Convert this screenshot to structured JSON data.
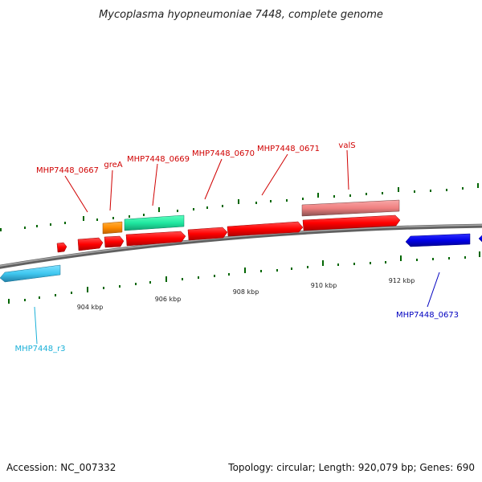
{
  "title": "Mycoplasma hyopneumoniae 7448, complete genome",
  "genes": [
    {
      "label": "MHP7448_0667",
      "color": "#e00000"
    },
    {
      "label": "greA",
      "color": "#e00000"
    },
    {
      "label": "MHP7448_0669",
      "color": "#e00000"
    },
    {
      "label": "MHP7448_0670",
      "color": "#e00000"
    },
    {
      "label": "MHP7448_0671",
      "color": "#e00000"
    },
    {
      "label": "valS",
      "color": "#e00000"
    },
    {
      "label": "MHP7448_0673",
      "color": "#0000c0"
    },
    {
      "label": "MHP7448_r3",
      "color": "#1ab0d8"
    }
  ],
  "scale": {
    "ticks": [
      "904 kbp",
      "906 kbp",
      "908 kbp",
      "910 kbp",
      "912 kbp"
    ]
  },
  "colors": {
    "cds": "#ff0000",
    "orange": "#ff8800",
    "teal": "#22e8a0",
    "pink": "#f08080",
    "blue": "#0000e8",
    "cyan": "#40c8f0",
    "backbone": "#808080",
    "tick": "#006600"
  },
  "footer": {
    "accession": "Accession: NC_007332",
    "info": "Topology: circular; Length: 920,079 bp; Genes: 690"
  }
}
